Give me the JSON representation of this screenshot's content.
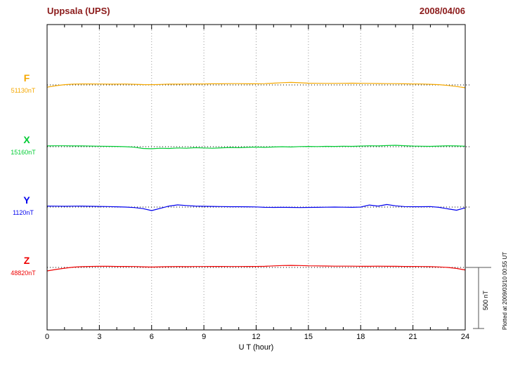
{
  "header": {
    "station": "Uppsala (UPS)",
    "date": "2008/04/06"
  },
  "plotted_at": "Plotted at 2009/03/10 00:55 UT",
  "scale_bar": {
    "label": "500 nT",
    "nT": 500
  },
  "colors": {
    "header_text": "#8b1a1a",
    "axis_text": "#000000",
    "grid": "#999999",
    "baseline": "#000000",
    "frame": "#000000",
    "scale_bar": "#555555"
  },
  "chart_data": {
    "type": "line",
    "title": "Uppsala (UPS) magnetogram 2008/04/06",
    "xlabel": "U T (hour)",
    "ylabel": "",
    "x_range": [
      0,
      24
    ],
    "x_ticks": [
      0,
      3,
      6,
      9,
      12,
      15,
      18,
      21,
      24
    ],
    "x_minor_tick_step": 1,
    "x_step_hours": 0.5,
    "grid": "dotted vertical lines at 3-hour intervals; dotted horizontal baseline per trace",
    "legend_position": "left margin labels",
    "scale_nT": 500,
    "series": [
      {
        "name": "F",
        "base_label": "51130nT",
        "base_nT": 51130,
        "color": "#f5a800",
        "offsets_nT": [
          -18,
          -6,
          2,
          6,
          8,
          8,
          7,
          6,
          6,
          7,
          5,
          3,
          2,
          4,
          6,
          6,
          7,
          8,
          8,
          9,
          9,
          10,
          10,
          9,
          9,
          10,
          14,
          18,
          20,
          17,
          14,
          13,
          12,
          12,
          13,
          14,
          13,
          12,
          11,
          10,
          10,
          9,
          8,
          7,
          5,
          2,
          -4,
          -12,
          -22
        ]
      },
      {
        "name": "X",
        "base_label": "15160nT",
        "base_nT": 15160,
        "color": "#00cc33",
        "offsets_nT": [
          6,
          7,
          7,
          6,
          6,
          5,
          4,
          3,
          2,
          0,
          -4,
          -14,
          -16,
          -12,
          -14,
          -10,
          -12,
          -8,
          -10,
          -12,
          -9,
          -6,
          -8,
          -5,
          -3,
          -5,
          -2,
          0,
          -2,
          1,
          2,
          1,
          3,
          2,
          4,
          3,
          5,
          7,
          6,
          9,
          11,
          8,
          5,
          4,
          3,
          5,
          7,
          6,
          4
        ]
      },
      {
        "name": "Y",
        "base_label": "1120nT",
        "base_nT": 1120,
        "color": "#0000ee",
        "offsets_nT": [
          8,
          7,
          6,
          7,
          8,
          6,
          5,
          4,
          2,
          0,
          -4,
          -12,
          -28,
          -10,
          8,
          17,
          12,
          8,
          6,
          5,
          4,
          3,
          3,
          2,
          1,
          -2,
          -3,
          -2,
          -3,
          -4,
          -3,
          -2,
          -1,
          0,
          -1,
          -2,
          0,
          16,
          8,
          20,
          10,
          4,
          3,
          3,
          4,
          -2,
          -14,
          -25,
          -6
        ]
      },
      {
        "name": "Z",
        "base_label": "48820nT",
        "base_nT": 48820,
        "color": "#ee0000",
        "offsets_nT": [
          -28,
          -16,
          -6,
          2,
          6,
          8,
          9,
          9,
          8,
          8,
          7,
          5,
          3,
          5,
          6,
          7,
          6,
          7,
          7,
          8,
          8,
          7,
          7,
          8,
          8,
          9,
          12,
          15,
          16,
          15,
          13,
          12,
          11,
          10,
          10,
          10,
          9,
          9,
          10,
          9,
          9,
          8,
          8,
          7,
          6,
          4,
          0,
          -8,
          -20
        ]
      }
    ]
  }
}
